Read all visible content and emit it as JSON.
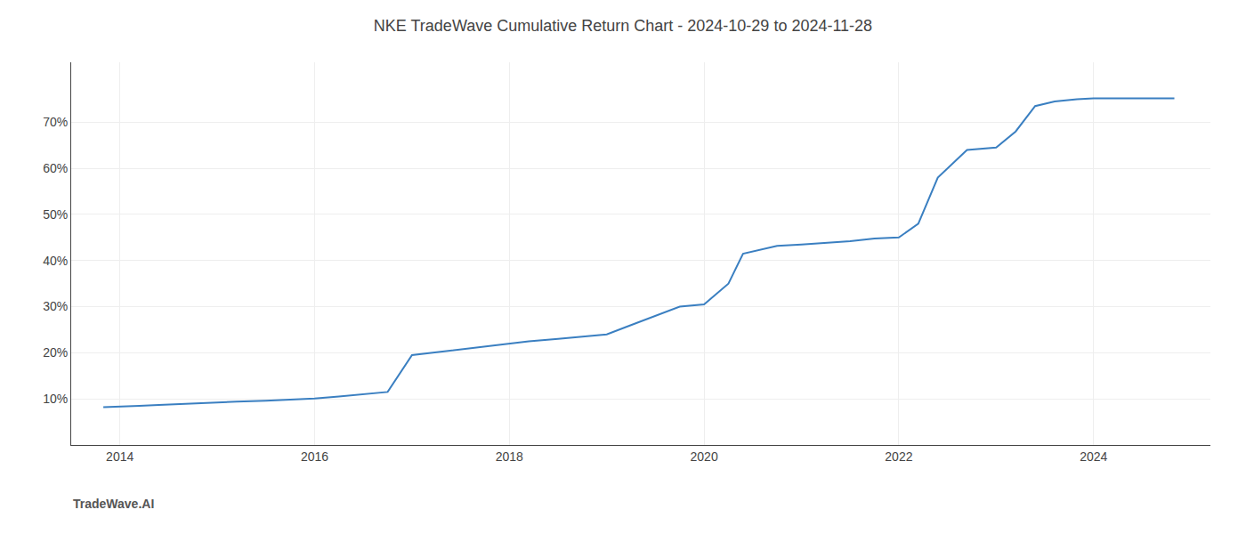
{
  "chart_data": {
    "type": "line",
    "title": "NKE TradeWave Cumulative Return Chart - 2024-10-29 to 2024-11-28",
    "annotations": [
      "TradeWave.AI"
    ],
    "color": "#3a7fc1",
    "grid": true,
    "x": [
      2013.83,
      2014.0,
      2014.2,
      2014.4,
      2014.6,
      2014.8,
      2015.0,
      2015.2,
      2015.5,
      2015.8,
      2016.0,
      2016.25,
      2016.5,
      2016.75,
      2017.0,
      2017.2,
      2017.4,
      2017.6,
      2017.8,
      2018.0,
      2018.2,
      2018.5,
      2018.75,
      2019.0,
      2019.25,
      2019.5,
      2019.75,
      2020.0,
      2020.25,
      2020.4,
      2020.6,
      2020.75,
      2021.0,
      2021.25,
      2021.5,
      2021.75,
      2022.0,
      2022.2,
      2022.4,
      2022.7,
      2023.0,
      2023.2,
      2023.4,
      2023.6,
      2023.83,
      2024.0,
      2024.5,
      2024.83
    ],
    "values": [
      8.2,
      8.4,
      8.5,
      8.7,
      8.9,
      9.0,
      9.2,
      9.4,
      9.6,
      9.9,
      10.1,
      10.5,
      11.0,
      11.5,
      19.5,
      20.0,
      20.5,
      21.0,
      21.5,
      22.0,
      22.5,
      23.0,
      23.5,
      24.0,
      26.0,
      28.0,
      30.0,
      30.5,
      35.0,
      41.5,
      42.5,
      43.2,
      43.5,
      43.8,
      44.2,
      44.8,
      45.0,
      48.0,
      58.0,
      64.0,
      64.5,
      68.0,
      73.5,
      74.5,
      75.0,
      75.2,
      75.2,
      75.2
    ],
    "xlim": [
      2013.5,
      2025.2
    ],
    "ylim": [
      0,
      83
    ],
    "xticks": [
      2014,
      2016,
      2018,
      2020,
      2022,
      2024
    ],
    "yticks": [
      {
        "value": 10,
        "label": "10%"
      },
      {
        "value": 20,
        "label": "20%"
      },
      {
        "value": 30,
        "label": "30%"
      },
      {
        "value": 40,
        "label": "40%"
      },
      {
        "value": 50,
        "label": "50%"
      },
      {
        "value": 60,
        "label": "60%"
      },
      {
        "value": 70,
        "label": "70%"
      }
    ]
  }
}
